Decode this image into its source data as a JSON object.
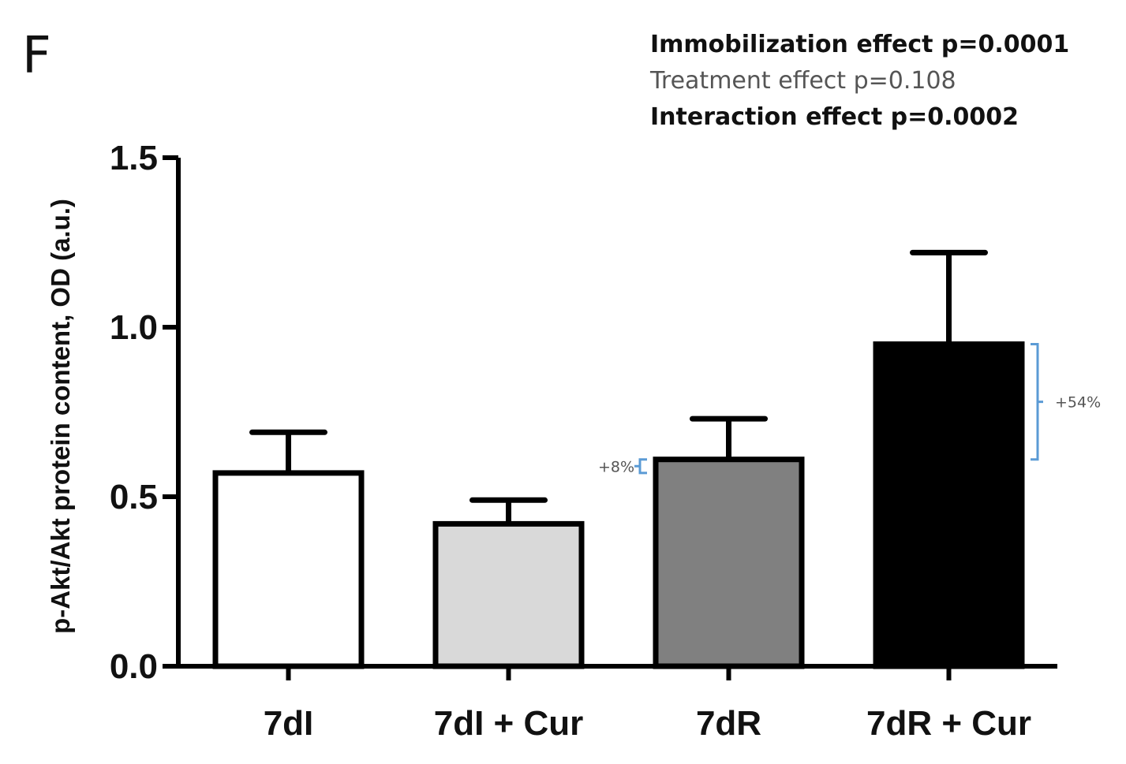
{
  "panel_label": "F",
  "stats": [
    {
      "text": "Immobilization effect p=0.0001",
      "bold": true
    },
    {
      "text": "Treatment effect p=0.108",
      "bold": false
    },
    {
      "text": "Interaction effect p=0.0002",
      "bold": true
    }
  ],
  "chart_data": {
    "type": "bar",
    "title": "",
    "xlabel": "",
    "ylabel": "p-Akt/Akt protein content, OD (a.u.)",
    "ylim": [
      0,
      1.5
    ],
    "yticks": [
      0.0,
      0.5,
      1.0,
      1.5
    ],
    "ytick_labels": [
      "0.0",
      "0.5",
      "1.0",
      "1.5"
    ],
    "categories": [
      "7dI",
      "7dI + Cur",
      "7dR",
      "7dR + Cur"
    ],
    "values": [
      0.57,
      0.42,
      0.61,
      0.95
    ],
    "errors": [
      0.12,
      0.07,
      0.12,
      0.27
    ],
    "bar_colors": [
      "#ffffff",
      "#d9d9d9",
      "#808080",
      "#000000"
    ],
    "annotations": [
      {
        "label": "+8%",
        "from": 0.57,
        "to": 0.61,
        "bar_index": 2,
        "side": "left"
      },
      {
        "label": "+54%",
        "from": 0.61,
        "to": 0.95,
        "bar_index": 3,
        "side": "right"
      }
    ],
    "annotation_color": "#5b9bd5"
  }
}
